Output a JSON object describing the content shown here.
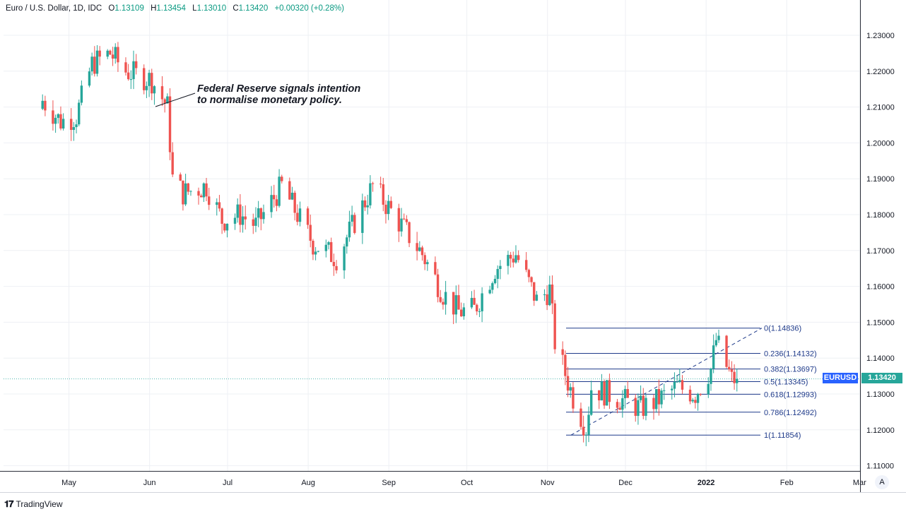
{
  "header": {
    "symbol": "Euro / U.S. Dollar, 1D, IDC",
    "open_label": "O",
    "open": "1.13109",
    "high_label": "H",
    "high": "1.13454",
    "low_label": "L",
    "low": "1.13010",
    "close_label": "C",
    "close": "1.13420",
    "change": "+0.00320 (+0.28%)"
  },
  "annotation": {
    "line1": "Federal Reserve signals intention",
    "line2": "to normalise monetary policy."
  },
  "price_tag": {
    "symbol": "EURUSD",
    "price": "1.13420"
  },
  "auto_scale_label": "A",
  "brand": "TradingView",
  "colors": {
    "up": "#26a69a",
    "down": "#ef5350",
    "fib": "#1e3a8a",
    "grid": "#eef0f4",
    "accent": "#2962ff"
  },
  "chart_data": {
    "type": "candlestick",
    "title": "Euro / U.S. Dollar, 1D, IDC",
    "ylim": [
      1.105,
      1.235
    ],
    "y_ticks": [
      "1.23000",
      "1.22000",
      "1.21000",
      "1.20000",
      "1.19000",
      "1.18000",
      "1.17000",
      "1.16000",
      "1.15000",
      "1.14000",
      "1.13000",
      "1.12000",
      "1.11000"
    ],
    "x_ticks": [
      "May",
      "Jun",
      "Jul",
      "Aug",
      "Sep",
      "Oct",
      "Nov",
      "Dec",
      "2022",
      "Feb",
      "Mar"
    ],
    "grid": true,
    "close_path": [
      [
        "2021-04-29",
        1.2118
      ],
      [
        "2021-05-06",
        1.206
      ],
      [
        "2021-05-12",
        1.2075
      ],
      [
        "2021-05-18",
        1.222
      ],
      [
        "2021-05-25",
        1.225
      ],
      [
        "2021-05-31",
        1.22
      ],
      [
        "2021-06-10",
        1.2175
      ],
      [
        "2021-06-16",
        1.21
      ],
      [
        "2021-06-18",
        1.19
      ],
      [
        "2021-06-22",
        1.186
      ],
      [
        "2021-07-01",
        1.188
      ],
      [
        "2021-07-07",
        1.1785
      ],
      [
        "2021-07-14",
        1.18
      ],
      [
        "2021-07-20",
        1.177
      ],
      [
        "2021-07-30",
        1.188
      ],
      [
        "2021-08-11",
        1.172
      ],
      [
        "2021-08-20",
        1.168
      ],
      [
        "2021-09-03",
        1.188
      ],
      [
        "2021-09-09",
        1.182
      ],
      [
        "2021-09-22",
        1.169
      ],
      [
        "2021-09-30",
        1.158
      ],
      [
        "2021-10-06",
        1.153
      ],
      [
        "2021-10-12",
        1.1535
      ],
      [
        "2021-10-20",
        1.165
      ],
      [
        "2021-10-28",
        1.169
      ],
      [
        "2021-11-05",
        1.156
      ],
      [
        "2021-11-10",
        1.159
      ],
      [
        "2021-11-12",
        1.1445
      ],
      [
        "2021-11-19",
        1.129
      ],
      [
        "2021-11-24",
        1.1205
      ],
      [
        "2021-11-26",
        1.1318
      ],
      [
        "2021-12-06",
        1.129
      ],
      [
        "2021-12-15",
        1.126
      ],
      [
        "2021-12-21",
        1.128
      ],
      [
        "2021-12-29",
        1.132
      ],
      [
        "2022-01-05",
        1.13
      ],
      [
        "2022-01-11",
        1.137
      ],
      [
        "2022-01-13",
        1.145
      ],
      [
        "2022-01-19",
        1.134
      ],
      [
        "2022-01-21",
        1.1342
      ]
    ],
    "fibonacci": {
      "anchor_start": {
        "date": "2021-11-24",
        "price": 1.11854
      },
      "anchor_end": {
        "date": "2022-01-14",
        "price": 1.14836
      },
      "levels": [
        {
          "ratio": "0",
          "price": 1.14836,
          "label": "0(1.14836)"
        },
        {
          "ratio": "0.236",
          "price": 1.14132,
          "label": "0.236(1.14132)"
        },
        {
          "ratio": "0.382",
          "price": 1.13697,
          "label": "0.382(1.13697)"
        },
        {
          "ratio": "0.5",
          "price": 1.13345,
          "label": "0.5(1.13345)"
        },
        {
          "ratio": "0.618",
          "price": 1.12993,
          "label": "0.618(1.12993)"
        },
        {
          "ratio": "0.786",
          "price": 1.12492,
          "label": "0.786(1.12492)"
        },
        {
          "ratio": "1",
          "price": 1.11854,
          "label": "1(1.11854)"
        }
      ]
    },
    "last_price": 1.1342
  }
}
